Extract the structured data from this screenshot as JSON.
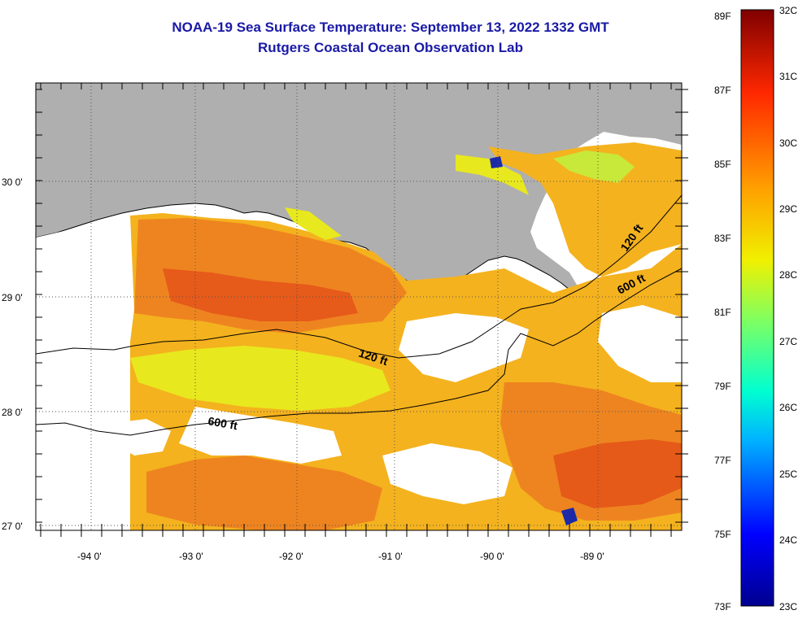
{
  "header": {
    "title": "NOAA-19 Sea Surface Temperature:  September 13, 2022 1332 GMT",
    "subtitle": "Rutgers Coastal Ocean Observation Lab"
  },
  "map": {
    "lon_ticks": [
      "-94 0'",
      "-93 0'",
      "-92 0'",
      "-91 0'",
      "-90 0'",
      "-89 0'"
    ],
    "lat_ticks": [
      "30 0'",
      "29 0'",
      "28 0'",
      "27 0'"
    ],
    "contours": [
      {
        "label": "120 ft"
      },
      {
        "label": "600 ft"
      },
      {
        "label": "120 ft"
      },
      {
        "label": "600 ft"
      }
    ],
    "colors": {
      "land": "#afafaf",
      "contour": "#000000",
      "grid": "#555555",
      "warm": "#f07a18",
      "mid": "#f4b21e",
      "cool": "#e8e81e"
    }
  },
  "colorbar": {
    "fahrenheit": [
      "89F",
      "87F",
      "85F",
      "83F",
      "81F",
      "79F",
      "77F",
      "75F",
      "73F"
    ],
    "celsius": [
      "32C",
      "31C",
      "30C",
      "29C",
      "28C",
      "27C",
      "26C",
      "25C",
      "24C",
      "23C"
    ]
  }
}
